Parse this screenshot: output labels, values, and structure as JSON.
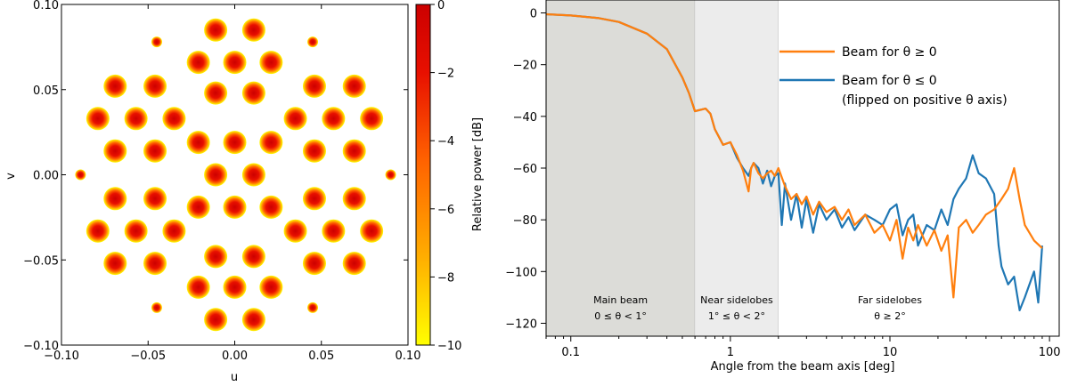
{
  "chart_data": [
    {
      "type": "heatmap",
      "xlabel": "u",
      "ylabel": "v",
      "xlim": [
        -0.1,
        0.1
      ],
      "ylim": [
        -0.1,
        0.1
      ],
      "xticks": [
        "−0.10",
        "−0.05",
        "0.00",
        "0.05",
        "0.10"
      ],
      "yticks": [
        "0.10",
        "0.05",
        "0.00",
        "−0.05",
        "−0.10"
      ],
      "colorbar": {
        "label": "Relative power [dB]",
        "range": [
          -10,
          0
        ],
        "ticks": [
          "0",
          "−2",
          "−4",
          "−6",
          "−8",
          "−10"
        ],
        "colors": [
          "#ffff00",
          "#ffb000",
          "#ff6000",
          "#e81000",
          "#cc0000"
        ]
      },
      "beams": [
        [
          -0.011,
          0.085
        ],
        [
          0.011,
          0.085
        ],
        [
          -0.021,
          0.066
        ],
        [
          0.0,
          0.066
        ],
        [
          0.021,
          0.066
        ],
        [
          -0.069,
          0.052
        ],
        [
          -0.046,
          0.052
        ],
        [
          -0.011,
          0.048
        ],
        [
          0.011,
          0.048
        ],
        [
          0.046,
          0.052
        ],
        [
          0.069,
          0.052
        ],
        [
          -0.079,
          0.033
        ],
        [
          -0.057,
          0.033
        ],
        [
          -0.035,
          0.033
        ],
        [
          0.035,
          0.033
        ],
        [
          0.057,
          0.033
        ],
        [
          0.079,
          0.033
        ],
        [
          -0.069,
          0.014
        ],
        [
          -0.046,
          0.014
        ],
        [
          -0.021,
          0.019
        ],
        [
          0.0,
          0.019
        ],
        [
          0.021,
          0.019
        ],
        [
          0.046,
          0.014
        ],
        [
          0.069,
          0.014
        ],
        [
          -0.011,
          0.0
        ],
        [
          0.011,
          0.0
        ],
        [
          -0.069,
          -0.014
        ],
        [
          -0.046,
          -0.014
        ],
        [
          -0.021,
          -0.019
        ],
        [
          0.0,
          -0.019
        ],
        [
          0.021,
          -0.019
        ],
        [
          0.046,
          -0.014
        ],
        [
          0.069,
          -0.014
        ],
        [
          -0.079,
          -0.033
        ],
        [
          -0.057,
          -0.033
        ],
        [
          -0.035,
          -0.033
        ],
        [
          0.035,
          -0.033
        ],
        [
          0.057,
          -0.033
        ],
        [
          0.079,
          -0.033
        ],
        [
          -0.069,
          -0.052
        ],
        [
          -0.046,
          -0.052
        ],
        [
          -0.011,
          -0.048
        ],
        [
          0.011,
          -0.048
        ],
        [
          0.046,
          -0.052
        ],
        [
          0.069,
          -0.052
        ],
        [
          -0.021,
          -0.066
        ],
        [
          0.0,
          -0.066
        ],
        [
          0.021,
          -0.066
        ],
        [
          -0.011,
          -0.085
        ],
        [
          0.011,
          -0.085
        ]
      ],
      "small_beams": [
        [
          -0.045,
          0.078
        ],
        [
          0.045,
          0.078
        ],
        [
          -0.089,
          0.0
        ],
        [
          0.09,
          0.0
        ],
        [
          -0.045,
          -0.078
        ],
        [
          0.045,
          -0.078
        ]
      ]
    },
    {
      "type": "line",
      "xlabel": "Angle from the beam axis [deg]",
      "ylabel": "",
      "xscale": "log",
      "xlim": [
        0.07,
        115
      ],
      "ylim": [
        -125,
        5
      ],
      "xticks": [
        "0.1",
        "1",
        "10",
        "100"
      ],
      "yticks": [
        "0",
        "−20",
        "−40",
        "−60",
        "−80",
        "−100",
        "−120"
      ],
      "regions": [
        {
          "from": 0.07,
          "to": 0.6,
          "color": "#dcdcd8",
          "label_line1": "Main beam",
          "label_line2": "0 ≤ θ < 1°"
        },
        {
          "from": 0.6,
          "to": 2.0,
          "color": "#ececec",
          "label_line1": "Near sidelobes",
          "label_line2": "1° ≤ θ < 2°"
        },
        {
          "from": 2.0,
          "to": 115,
          "color": "#ffffff",
          "label_line1": "Far sidelobes",
          "label_line2": "θ ≥ 2°"
        }
      ],
      "legend": {
        "placement": "upper-right",
        "note": "(flipped on positive θ axis)"
      },
      "series": [
        {
          "name": "Beam for θ ≥ 0",
          "color": "#ff7f0e",
          "x": [
            0.07,
            0.1,
            0.15,
            0.2,
            0.3,
            0.4,
            0.5,
            0.55,
            0.6,
            0.7,
            0.75,
            0.8,
            0.9,
            1.0,
            1.1,
            1.2,
            1.3,
            1.35,
            1.4,
            1.5,
            1.6,
            1.7,
            1.8,
            1.9,
            2.0,
            2.2,
            2.4,
            2.6,
            2.8,
            3.0,
            3.3,
            3.6,
            4.0,
            4.5,
            5.0,
            5.5,
            6.0,
            7.0,
            8.0,
            9.0,
            10.0,
            11.0,
            12.0,
            13.0,
            14.0,
            15.0,
            17.0,
            19.0,
            21.0,
            23.0,
            25.0,
            27.0,
            30.0,
            33.0,
            36.0,
            40.0,
            45.0,
            50.0,
            55.0,
            60.0,
            65.0,
            70.0,
            80.0,
            90.0
          ],
          "y": [
            -0.5,
            -1.0,
            -2.0,
            -3.5,
            -8.0,
            -14.0,
            -25.0,
            -31.0,
            -38.0,
            -37.0,
            -39.0,
            -45.0,
            -51.0,
            -50.0,
            -55.0,
            -61.0,
            -69.0,
            -60.0,
            -58.0,
            -62.0,
            -64.0,
            -62.0,
            -61.0,
            -63.0,
            -60.0,
            -67.0,
            -72.0,
            -70.0,
            -74.0,
            -71.0,
            -78.0,
            -73.0,
            -77.0,
            -75.0,
            -80.0,
            -76.0,
            -82.0,
            -78.0,
            -85.0,
            -82.0,
            -88.0,
            -80.0,
            -95.0,
            -83.0,
            -88.0,
            -82.0,
            -90.0,
            -84.0,
            -92.0,
            -86.0,
            -110.0,
            -83.0,
            -80.0,
            -85.0,
            -82.0,
            -78.0,
            -76.0,
            -72.0,
            -68.0,
            -60.0,
            -72.0,
            -82.0,
            -88.0,
            -91.0
          ]
        },
        {
          "name": "Beam for θ ≤ 0",
          "color": "#1f77b4",
          "x": [
            0.07,
            0.1,
            0.15,
            0.2,
            0.3,
            0.4,
            0.5,
            0.55,
            0.6,
            0.7,
            0.75,
            0.8,
            0.9,
            1.0,
            1.1,
            1.2,
            1.3,
            1.35,
            1.4,
            1.5,
            1.6,
            1.7,
            1.8,
            1.9,
            2.0,
            2.1,
            2.2,
            2.4,
            2.6,
            2.8,
            3.0,
            3.3,
            3.6,
            4.0,
            4.5,
            5.0,
            5.5,
            6.0,
            7.0,
            8.0,
            9.0,
            10.0,
            11.0,
            12.0,
            13.0,
            14.0,
            15.0,
            17.0,
            19.0,
            21.0,
            23.0,
            25.0,
            27.0,
            30.0,
            33.0,
            36.0,
            40.0,
            45.0,
            48.0,
            50.0,
            55.0,
            60.0,
            65.0,
            70.0,
            80.0,
            85.0,
            90.0
          ],
          "y": [
            -0.5,
            -1.0,
            -2.0,
            -3.5,
            -8.0,
            -14.0,
            -25.0,
            -31.0,
            -38.0,
            -37.0,
            -39.0,
            -45.0,
            -51.0,
            -50.0,
            -56.0,
            -60.0,
            -63.0,
            -60.0,
            -58.0,
            -60.0,
            -66.0,
            -61.0,
            -67.0,
            -63.0,
            -62.0,
            -82.0,
            -66.0,
            -80.0,
            -70.0,
            -83.0,
            -72.0,
            -85.0,
            -74.0,
            -80.0,
            -76.0,
            -83.0,
            -79.0,
            -84.0,
            -78.0,
            -80.0,
            -82.0,
            -76.0,
            -74.0,
            -86.0,
            -80.0,
            -78.0,
            -90.0,
            -82.0,
            -84.0,
            -76.0,
            -82.0,
            -72.0,
            -68.0,
            -64.0,
            -55.0,
            -62.0,
            -64.0,
            -70.0,
            -90.0,
            -98.0,
            -105.0,
            -102.0,
            -115.0,
            -110.0,
            -100.0,
            -112.0,
            -90.0
          ]
        }
      ]
    }
  ]
}
